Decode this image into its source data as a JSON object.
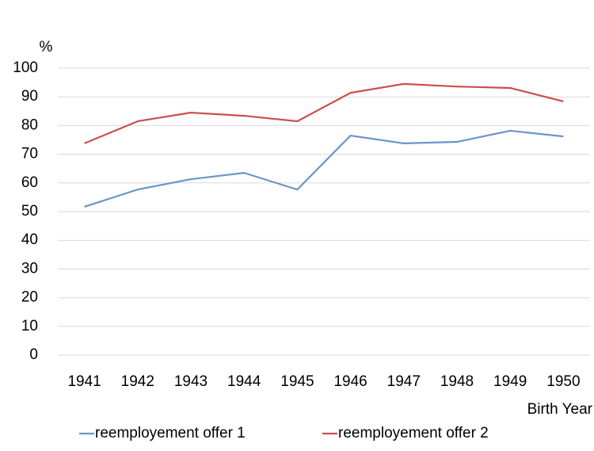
{
  "chart_data": {
    "type": "line",
    "y_label": "%",
    "x_label": "Birth Year",
    "categories": [
      "1941",
      "1942",
      "1943",
      "1944",
      "1945",
      "1946",
      "1947",
      "1948",
      "1949",
      "1950"
    ],
    "series": [
      {
        "name": "reemployement offer 1",
        "color": "#6a95c8",
        "values": [
          51.7,
          57.7,
          61.3,
          63.5,
          57.7,
          76.5,
          73.8,
          74.3,
          78.2,
          76.2
        ]
      },
      {
        "name": "reemployement offer 2",
        "color": "#c9504c",
        "values": [
          73.8,
          81.5,
          84.5,
          83.4,
          81.5,
          91.4,
          94.5,
          93.6,
          93.1,
          88.4
        ]
      }
    ],
    "ylim": [
      0,
      100
    ],
    "yticks": [
      0,
      10,
      20,
      30,
      40,
      50,
      60,
      70,
      80,
      90,
      100
    ],
    "grid": true
  }
}
